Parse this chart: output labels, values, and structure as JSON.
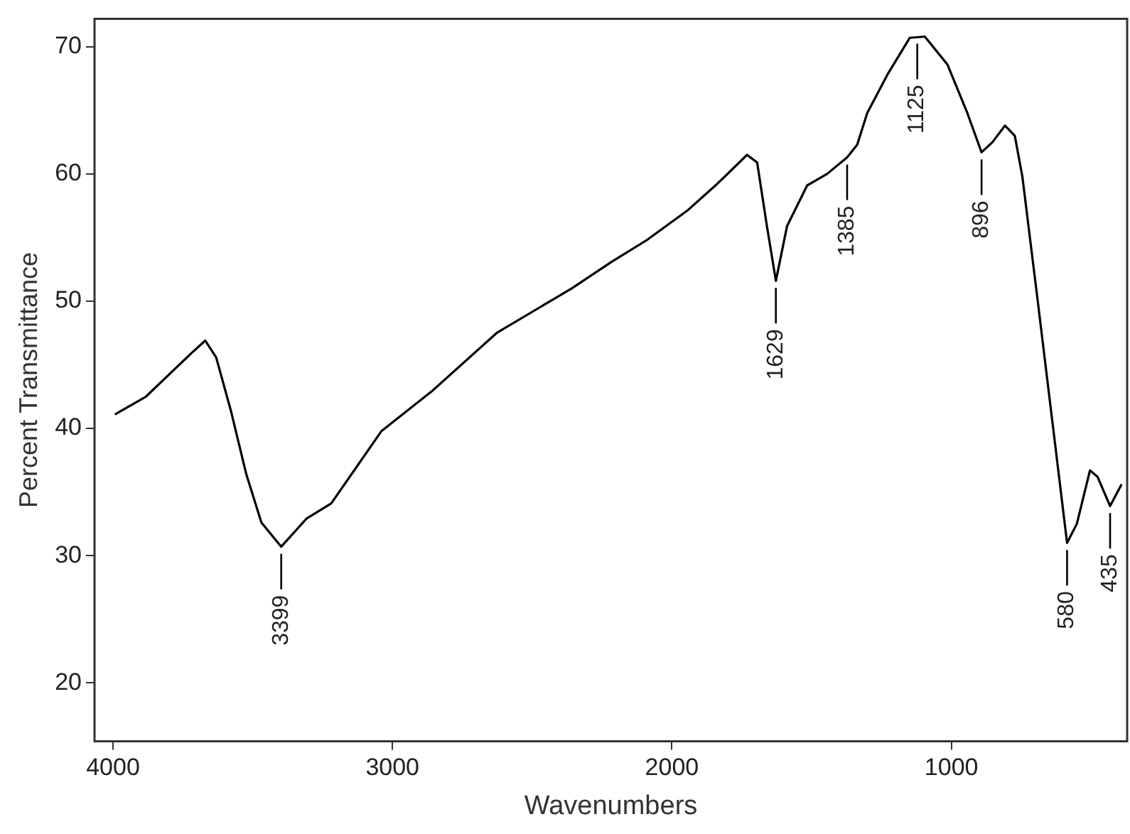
{
  "chart_data": {
    "type": "line",
    "xlabel": "Wavenumbers",
    "ylabel": "Percent Transmittance",
    "x": [
      3993,
      3882,
      3720,
      3670,
      3631,
      3577,
      3523,
      3469,
      3398,
      3308,
      3219,
      3039,
      2860,
      2627,
      2359,
      2215,
      2090,
      1946,
      1839,
      1731,
      1695,
      1660,
      1628,
      1588,
      1516,
      1445,
      1373,
      1337,
      1301,
      1229,
      1149,
      1095,
      1014,
      943,
      892,
      853,
      808,
      773,
      746,
      692,
      639,
      586,
      551,
      504,
      477,
      432,
      391
    ],
    "series": [
      {
        "color": "#000000",
        "values": [
          41.1,
          42.5,
          45.9,
          46.9,
          45.6,
          41.3,
          36.4,
          32.6,
          30.7,
          32.9,
          34.1,
          39.8,
          42.9,
          47.5,
          51.0,
          53.1,
          54.8,
          57.1,
          59.2,
          61.5,
          60.9,
          55.9,
          51.6,
          55.9,
          59.1,
          60.0,
          61.3,
          62.3,
          64.8,
          67.8,
          70.7,
          70.8,
          68.6,
          64.8,
          61.7,
          62.5,
          63.8,
          63.0,
          59.8,
          50.2,
          40.6,
          31.0,
          32.5,
          36.7,
          36.2,
          33.9,
          35.6
        ]
      }
    ],
    "xlim": [
      4066,
      371
    ],
    "xticks": [
      4000,
      3000,
      2000,
      1000
    ],
    "ylim": [
      15.4,
      72.2
    ],
    "yticks": [
      20,
      30,
      40,
      50,
      60,
      70
    ],
    "grid": false,
    "legend": false,
    "marker": "none",
    "line_style": "solid",
    "annotations": [
      {
        "text": "3399",
        "x": 3398,
        "y": 30.7
      },
      {
        "text": "1629",
        "x": 1628,
        "y": 51.6
      },
      {
        "text": "1385",
        "x": 1373,
        "y": 61.3
      },
      {
        "text": "1125",
        "x": 1122,
        "y": 70.8
      },
      {
        "text": "896",
        "x": 892,
        "y": 61.7
      },
      {
        "text": "580",
        "x": 586,
        "y": 31.0
      },
      {
        "text": "435",
        "x": 432,
        "y": 33.9
      }
    ]
  }
}
